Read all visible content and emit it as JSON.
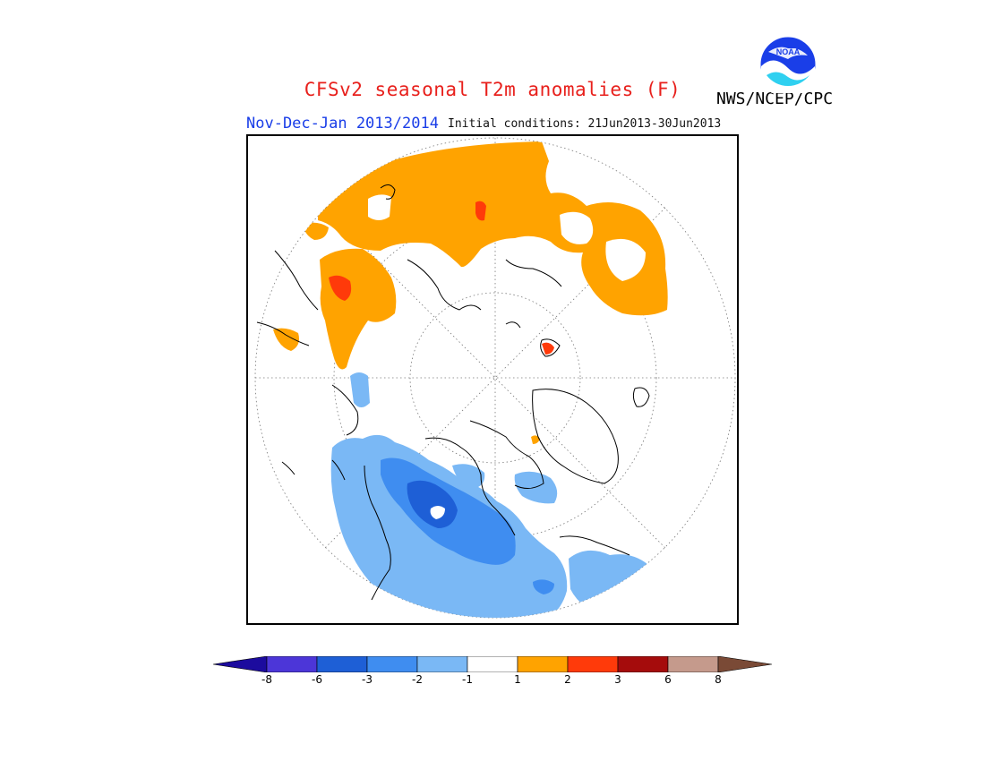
{
  "title": "CFSv2 seasonal T2m anomalies (F)",
  "period": "Nov-Dec-Jan 2013/2014",
  "initial_conditions": "Initial conditions: 21Jun2013-30Jun2013",
  "agency": "NWS/NCEP/CPC",
  "logo_text": "NOAA",
  "colors": {
    "title": "#e8201c",
    "period": "#1a3ee8",
    "warm_1_2": "#ffa300",
    "warm_2_3": "#ff3a0a",
    "cool_m1_m2": "#7ab8f5",
    "cool_m2_m3": "#3f8df0",
    "cool_m3_m6": "#1e5fd6"
  },
  "legend": {
    "bins": [
      {
        "color": "#1c0b9e"
      },
      {
        "color": "#4c36d8"
      },
      {
        "color": "#1e5fd6"
      },
      {
        "color": "#3f8df0"
      },
      {
        "color": "#7ab8f5"
      },
      {
        "color": "#ffffff"
      },
      {
        "color": "#ffa300"
      },
      {
        "color": "#ff3a0a"
      },
      {
        "color": "#a50c0c"
      },
      {
        "color": "#c59a8c"
      },
      {
        "color": "#7a4a36"
      }
    ],
    "labels": [
      "-8",
      "-6",
      "-3",
      "-2",
      "-1",
      "1",
      "2",
      "3",
      "6",
      "8"
    ]
  }
}
